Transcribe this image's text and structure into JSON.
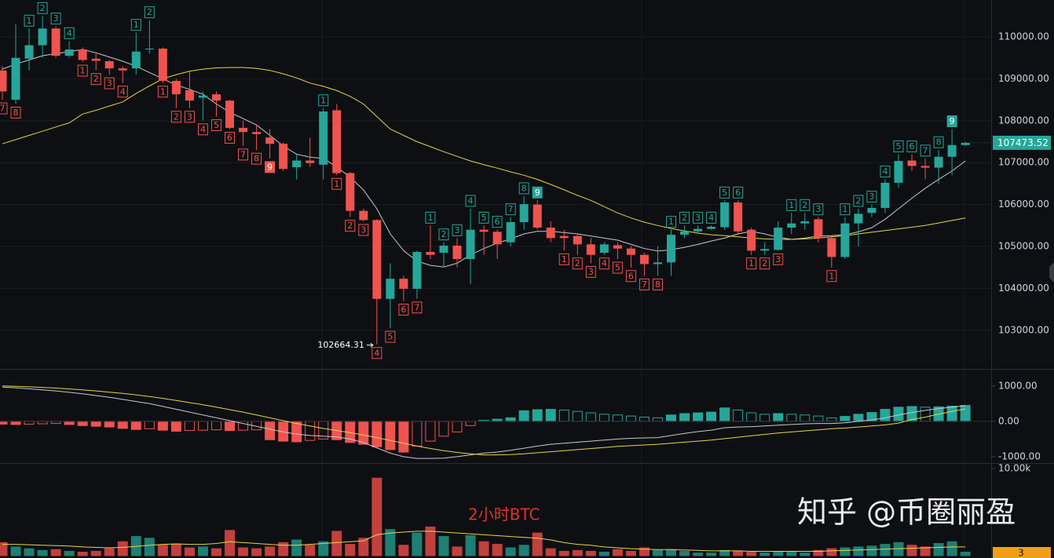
{
  "chart_data": [
    {
      "type": "candlestick",
      "up_color": "#26a69a",
      "down_color": "#ef5350",
      "ylim": [
        102080,
        110880
      ],
      "yticks": [
        {
          "value": 110000,
          "label": "110000.00"
        },
        {
          "value": 109000,
          "label": "109000.00"
        },
        {
          "value": 108000,
          "label": "108000.00"
        },
        {
          "value": 107000,
          "label": "107000.00"
        },
        {
          "value": 106000,
          "label": "106000.00"
        },
        {
          "value": 105000,
          "label": "105000.00"
        },
        {
          "value": 104000,
          "label": "104000.00"
        },
        {
          "value": 103000,
          "label": "103000.00"
        }
      ],
      "grid": true,
      "open": [
        109200,
        108500,
        109480,
        109800,
        110200,
        109550,
        109700,
        109480,
        109420,
        109250,
        109250,
        109700,
        109720,
        108950,
        108730,
        108550,
        108630,
        108480,
        107830,
        107730,
        107600,
        107450,
        106890,
        107050,
        106950,
        108250,
        106750,
        105850,
        105630,
        103750,
        104230,
        103990,
        104870,
        104850,
        105020,
        104700,
        105400,
        105350,
        105100,
        105580,
        106000,
        105450,
        105250,
        105250,
        105050,
        104850,
        105030,
        104950,
        104800,
        104580,
        104620,
        105280,
        105360,
        105420,
        105460,
        106050,
        105400,
        104900,
        104920,
        105450,
        105550,
        105650,
        105200,
        104750,
        105550,
        105800,
        105920,
        106520,
        107050,
        106920,
        106880,
        107140,
        107420
      ],
      "high": [
        109300,
        110300,
        110200,
        110500,
        110250,
        109900,
        109750,
        109600,
        109450,
        109300,
        110100,
        110400,
        109750,
        109000,
        109200,
        108700,
        108700,
        108500,
        108000,
        107900,
        107800,
        107480,
        107200,
        107600,
        108300,
        108400,
        106780,
        105900,
        105650,
        104600,
        104300,
        104900,
        105500,
        105100,
        105200,
        105900,
        105500,
        105400,
        105700,
        106200,
        106100,
        105600,
        105400,
        105300,
        105200,
        105100,
        105100,
        105000,
        104850,
        105000,
        105400,
        105500,
        105500,
        105500,
        106100,
        106100,
        105450,
        105100,
        105600,
        105800,
        105800,
        105700,
        105250,
        105700,
        105900,
        106000,
        106600,
        107200,
        107200,
        107100,
        107300,
        107800,
        107500
      ],
      "low": [
        108500,
        108400,
        109200,
        109500,
        109500,
        109500,
        109400,
        109200,
        109100,
        108900,
        109100,
        109600,
        108900,
        108300,
        108300,
        108000,
        108100,
        107800,
        107400,
        107300,
        107100,
        106800,
        106600,
        106900,
        106600,
        106700,
        105700,
        105600,
        102664.31,
        103050,
        103700,
        103750,
        104700,
        104500,
        104500,
        104100,
        104800,
        104700,
        105000,
        105400,
        105400,
        105100,
        104900,
        104800,
        104600,
        104800,
        104700,
        104500,
        104300,
        104300,
        104300,
        105200,
        105300,
        105400,
        105400,
        105300,
        104800,
        104800,
        104900,
        105300,
        105400,
        105100,
        104500,
        104700,
        105000,
        105700,
        105800,
        106400,
        106800,
        106600,
        106500,
        106700,
        107400
      ],
      "close": [
        108700,
        109500,
        109800,
        110200,
        109550,
        109700,
        109450,
        109430,
        109250,
        109200,
        109650,
        109720,
        108950,
        108630,
        108480,
        108600,
        108480,
        107830,
        107730,
        107680,
        107450,
        106850,
        107050,
        106990,
        108220,
        106750,
        105850,
        105630,
        103750,
        104230,
        103990,
        104870,
        104800,
        105020,
        104700,
        105400,
        105350,
        105050,
        105580,
        106010,
        105450,
        105200,
        105200,
        105050,
        104800,
        105050,
        104950,
        104800,
        104580,
        104620,
        105280,
        105360,
        105420,
        105470,
        106050,
        105360,
        104900,
        104940,
        105450,
        105550,
        105600,
        105200,
        104750,
        105550,
        105780,
        105920,
        106520,
        107040,
        106920,
        106880,
        107140,
        107420,
        107473.52
      ],
      "lines": [
        {
          "color": "#c8c8d0",
          "values": [
            109230,
            109350,
            109450,
            109550,
            109600,
            109650,
            109700,
            109620,
            109520,
            109420,
            109300,
            109150,
            109000,
            108850,
            108750,
            108630,
            108400,
            108200,
            108050,
            107900,
            107650,
            107400,
            107200,
            107130,
            107100,
            106900,
            106650,
            106350,
            105900,
            105300,
            104900,
            104650,
            104550,
            104510,
            104600,
            104800,
            104950,
            105080,
            105180,
            105300,
            105360,
            105360,
            105330,
            105300,
            105250,
            105200,
            105150,
            105050,
            104950,
            104890,
            104920,
            104980,
            105050,
            105130,
            105200,
            105300,
            105360,
            105300,
            105220,
            105170,
            105200,
            105250,
            105260,
            105280,
            105350,
            105450,
            105650,
            105900,
            106150,
            106390,
            106600,
            106800,
            107040
          ]
        },
        {
          "color": "#e6d44a",
          "values": [
            107450,
            107550,
            107650,
            107750,
            107850,
            107950,
            108160,
            108250,
            108350,
            108450,
            108650,
            108830,
            109000,
            109100,
            109180,
            109230,
            109260,
            109270,
            109270,
            109250,
            109200,
            109120,
            109020,
            108900,
            108820,
            108720,
            108580,
            108400,
            108100,
            107800,
            107650,
            107500,
            107380,
            107260,
            107150,
            107040,
            106950,
            106870,
            106780,
            106700,
            106600,
            106480,
            106350,
            106220,
            106100,
            105950,
            105800,
            105680,
            105580,
            105500,
            105430,
            105370,
            105320,
            105280,
            105260,
            105230,
            105200,
            105180,
            105170,
            105170,
            105180,
            105200,
            105230,
            105260,
            105300,
            105340,
            105380,
            105420,
            105460,
            105500,
            105560,
            105620,
            105680
          ]
        }
      ],
      "td_up": [
        null,
        null,
        1,
        2,
        3,
        4,
        null,
        null,
        null,
        null,
        1,
        2,
        null,
        null,
        null,
        null,
        null,
        null,
        null,
        null,
        null,
        null,
        null,
        null,
        1,
        null,
        null,
        null,
        null,
        null,
        null,
        null,
        1,
        2,
        3,
        4,
        5,
        6,
        7,
        8,
        9,
        null,
        null,
        null,
        null,
        null,
        null,
        null,
        null,
        null,
        1,
        2,
        3,
        4,
        5,
        6,
        null,
        null,
        null,
        1,
        2,
        3,
        null,
        1,
        2,
        3,
        4,
        5,
        6,
        7,
        8,
        9,
        null
      ],
      "td_down": [
        7,
        8,
        null,
        null,
        null,
        null,
        1,
        2,
        3,
        4,
        null,
        null,
        1,
        2,
        3,
        4,
        5,
        6,
        7,
        8,
        9,
        null,
        null,
        null,
        null,
        1,
        2,
        3,
        4,
        5,
        6,
        7,
        null,
        null,
        null,
        null,
        null,
        null,
        null,
        null,
        null,
        null,
        1,
        2,
        3,
        4,
        5,
        6,
        7,
        8,
        null,
        null,
        null,
        null,
        null,
        null,
        1,
        2,
        3,
        null,
        null,
        null,
        1,
        null,
        null,
        null,
        null,
        null,
        null,
        null,
        null,
        null,
        null
      ]
    },
    {
      "type": "bar",
      "up_color": "#26a69a",
      "down_color": "#ef5350",
      "ylim": [
        -1180,
        1440
      ],
      "yticks": [
        {
          "value": 1000,
          "label": "1000.00"
        },
        {
          "value": 0,
          "label": "0.00"
        },
        {
          "value": -1000,
          "label": "-1000.00"
        }
      ],
      "values": [
        -80,
        -90,
        -80,
        -70,
        -60,
        -90,
        -120,
        -140,
        -160,
        -200,
        -230,
        -210,
        -250,
        -280,
        -260,
        -250,
        -240,
        -260,
        -250,
        -240,
        -520,
        -560,
        -580,
        -540,
        -500,
        -520,
        -600,
        -650,
        -720,
        -800,
        -870,
        -700,
        -560,
        -420,
        -300,
        -120,
        30,
        60,
        100,
        300,
        330,
        340,
        320,
        280,
        240,
        200,
        180,
        150,
        120,
        100,
        180,
        220,
        240,
        260,
        380,
        320,
        240,
        200,
        220,
        200,
        180,
        150,
        100,
        140,
        200,
        250,
        340,
        400,
        420,
        400,
        410,
        430,
        450
      ],
      "lines": [
        {
          "color": "#c8c8d0",
          "values": [
            970,
            950,
            920,
            890,
            860,
            820,
            780,
            730,
            680,
            620,
            560,
            500,
            420,
            340,
            260,
            180,
            100,
            20,
            -60,
            -140,
            -220,
            -300,
            -360,
            -400,
            -420,
            -440,
            -500,
            -600,
            -750,
            -900,
            -1000,
            -1050,
            -1050,
            -1040,
            -1000,
            -950,
            -900,
            -870,
            -820,
            -760,
            -700,
            -650,
            -620,
            -590,
            -560,
            -530,
            -500,
            -480,
            -470,
            -460,
            -400,
            -340,
            -290,
            -250,
            -180,
            -160,
            -150,
            -130,
            -110,
            -90,
            -70,
            -60,
            -60,
            -40,
            0,
            40,
            100,
            180,
            250,
            310,
            360,
            400,
            440
          ]
        },
        {
          "color": "#e6d44a",
          "values": [
            1000,
            990,
            975,
            960,
            940,
            915,
            890,
            860,
            825,
            790,
            750,
            700,
            650,
            590,
            530,
            470,
            400,
            330,
            260,
            180,
            100,
            20,
            -60,
            -130,
            -200,
            -260,
            -320,
            -390,
            -460,
            -540,
            -620,
            -700,
            -770,
            -830,
            -880,
            -920,
            -950,
            -950,
            -940,
            -920,
            -890,
            -860,
            -830,
            -800,
            -770,
            -740,
            -710,
            -690,
            -670,
            -650,
            -620,
            -590,
            -560,
            -530,
            -490,
            -450,
            -410,
            -370,
            -330,
            -300,
            -270,
            -240,
            -210,
            -190,
            -160,
            -130,
            -100,
            -50,
            50,
            120,
            200,
            280,
            350
          ]
        }
      ]
    },
    {
      "type": "bar",
      "up_color": "#1f7f74",
      "down_color": "#c2403e",
      "ylim": [
        -270,
        10450
      ],
      "yticks": [
        {
          "value": 10000,
          "label": "10.00k"
        }
      ],
      "values": [
        1500,
        1000,
        800,
        600,
        700,
        500,
        400,
        500,
        800,
        1600,
        2200,
        2000,
        1200,
        1300,
        900,
        1000,
        800,
        2900,
        900,
        800,
        1000,
        1500,
        1800,
        1200,
        1600,
        2800,
        1300,
        2000,
        8900,
        3000,
        1200,
        2600,
        3300,
        2200,
        1000,
        2300,
        1600,
        1300,
        900,
        1200,
        2600,
        800,
        500,
        600,
        500,
        400,
        700,
        500,
        900,
        600,
        700,
        500,
        300,
        300,
        600,
        500,
        400,
        300,
        500,
        400,
        300,
        600,
        800,
        900,
        1000,
        1100,
        1300,
        1500,
        1200,
        1000,
        1400,
        1600,
        400
      ],
      "lines": [
        {
          "color": "#e6d44a",
          "values": [
            1300,
            1300,
            1250,
            1200,
            1150,
            1100,
            1000,
            950,
            900,
            950,
            1050,
            1200,
            1300,
            1350,
            1300,
            1300,
            1400,
            1600,
            1500,
            1400,
            1300,
            1200,
            1200,
            1300,
            1400,
            1500,
            1600,
            1700,
            2400,
            2600,
            2700,
            2800,
            2800,
            2700,
            2600,
            2500,
            2400,
            2300,
            2200,
            2100,
            2000,
            1800,
            1500,
            1300,
            1200,
            1000,
            900,
            800,
            750,
            700,
            700,
            650,
            600,
            550,
            550,
            550,
            500,
            500,
            500,
            500,
            500,
            500,
            550,
            600,
            650,
            700,
            750,
            800,
            850,
            900,
            950,
            1000,
            1000
          ]
        }
      ],
      "last_value_label": "3",
      "annotation": "2小时BTC"
    }
  ],
  "watermark": "知乎 @币圈丽盈"
}
